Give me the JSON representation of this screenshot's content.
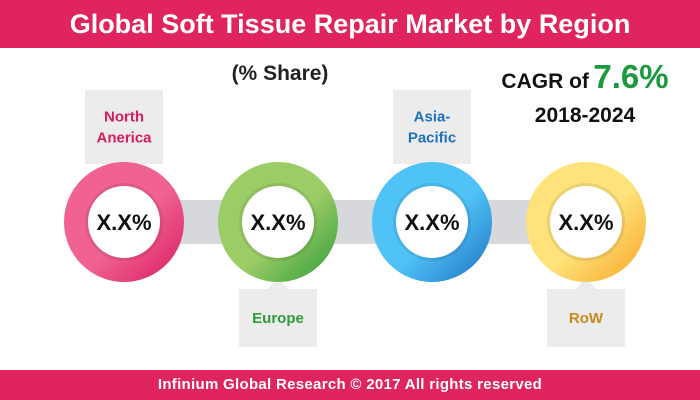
{
  "title": "Global Soft Tissue Repair Market by Region",
  "subtitle": "(% Share)",
  "cagr": {
    "label": "CAGR of",
    "value": "7.6%",
    "period": "2018-2024"
  },
  "footer": "Infinium Global Research © 2017 All rights reserved",
  "colors": {
    "brand": "#e0245e",
    "cagr_value": "#1a9a3c",
    "connector": "#d6d8dc",
    "callout_bg": "#ececec"
  },
  "chart_data": {
    "type": "pie",
    "categories": [
      "North\nAnerica",
      "Europe",
      "Asia-\nPacific",
      "RoW"
    ],
    "values": [
      "X.X%",
      "X.X%",
      "X.X%",
      "X.X%"
    ],
    "series": [
      {
        "label": "North\nAnerica",
        "value": "X.X%",
        "color_light": "#f06292",
        "color_dark": "#d81b60",
        "text_color": "#d81b60",
        "callout": "top"
      },
      {
        "label": "Europe",
        "value": "X.X%",
        "color_light": "#9ccc65",
        "color_dark": "#2e9b3a",
        "text_color": "#2e9b3a",
        "callout": "bottom"
      },
      {
        "label": "Asia-\nPacific",
        "value": "X.X%",
        "color_light": "#4fc3f7",
        "color_dark": "#1e70c1",
        "text_color": "#1e70c1",
        "callout": "top"
      },
      {
        "label": "RoW",
        "value": "X.X%",
        "color_light": "#ffe27a",
        "color_dark": "#f5a623",
        "text_color": "#c78a18",
        "callout": "bottom"
      }
    ]
  }
}
